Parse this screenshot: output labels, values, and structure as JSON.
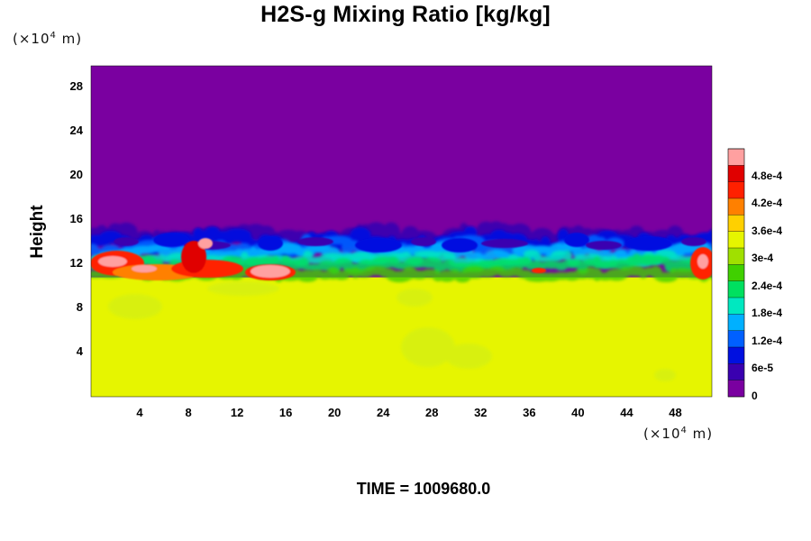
{
  "chart_data": {
    "type": "heatmap",
    "title": "H2S-g Mixing Ratio [kg/kg]",
    "ylabel": "Height",
    "xlabel": "",
    "y_unit": {
      "prefix": "(×10",
      "exp": "4",
      "suffix": " m)"
    },
    "x_unit": {
      "prefix": "(×10",
      "exp": "4",
      "suffix": " m)"
    },
    "xlim": [
      0,
      51
    ],
    "ylim": [
      0,
      30
    ],
    "xticks": [
      "4",
      "8",
      "12",
      "16",
      "20",
      "24",
      "28",
      "32",
      "36",
      "40",
      "44",
      "48"
    ],
    "xtick_values": [
      4,
      8,
      12,
      16,
      20,
      24,
      28,
      32,
      36,
      40,
      44,
      48
    ],
    "yticks": [
      "4",
      "8",
      "12",
      "16",
      "20",
      "24",
      "28"
    ],
    "ytick_values": [
      4,
      8,
      12,
      16,
      20,
      24,
      28
    ],
    "colorbar": {
      "min": 0,
      "max": 0.00054,
      "tick_labels": [
        "0",
        "6e-5",
        "1.2e-4",
        "1.8e-4",
        "2.4e-4",
        "3e-4",
        "3.6e-4",
        "4.2e-4",
        "4.8e-4"
      ],
      "tick_values": [
        0,
        6e-05,
        0.00012,
        0.00018,
        0.00024,
        0.0003,
        0.00036,
        0.00042,
        0.00048
      ],
      "palette": [
        "#7a00a0",
        "#3a00b0",
        "#0010e0",
        "#0060ff",
        "#00b0ff",
        "#00e8c0",
        "#00e060",
        "#40d000",
        "#a0e000",
        "#e6f500",
        "#ffd000",
        "#ff8000",
        "#ff2000",
        "#e00000",
        "#ffa0a0"
      ]
    },
    "field": {
      "upper_layer": {
        "y_range": [
          14.5,
          30
        ],
        "value": 0
      },
      "lower_layer": {
        "y_range": [
          0,
          10.5
        ],
        "value": 0.00033
      },
      "interface": {
        "y_range": [
          10.5,
          14.5
        ],
        "value_range": [
          0,
          0.00054
        ]
      }
    }
  },
  "footer": {
    "time_text": "TIME = 1009680.0"
  }
}
